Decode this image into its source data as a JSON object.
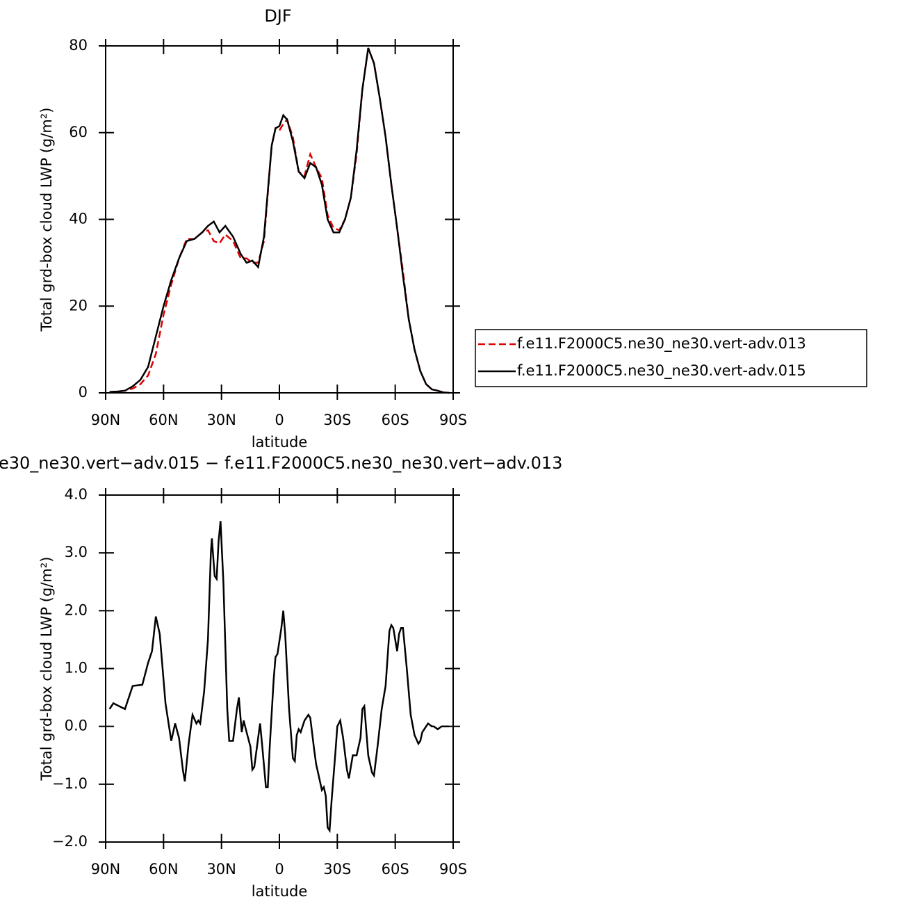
{
  "chart_data": [
    {
      "type": "line",
      "title": "DJF",
      "xlabel": "latitude",
      "ylabel": "Total grd-box cloud LWP (g/m²)",
      "x": [
        88,
        84,
        80,
        76,
        72,
        68,
        64,
        60,
        56,
        52,
        48,
        44,
        40,
        37,
        34,
        31,
        28,
        24,
        20,
        17,
        14,
        11,
        8,
        4,
        2,
        0,
        -2,
        -4,
        -7,
        -10,
        -13,
        -16,
        -19,
        -22,
        -25,
        -28,
        -31,
        -34,
        -37,
        -40,
        -43,
        -46,
        -49,
        -52,
        -55,
        -58,
        -61,
        -64,
        -67,
        -70,
        -73,
        -76,
        -79,
        -82,
        -85,
        -88
      ],
      "series": [
        {
          "name": "f.e11.F2000C5.ne30_ne30.vert-adv.013",
          "color": "#e00000",
          "line_style": "dashed",
          "values": [
            0.2,
            0.3,
            0.5,
            1,
            2,
            4,
            9,
            18,
            25,
            31,
            35.5,
            35.5,
            37,
            37.5,
            35,
            34.5,
            36.5,
            35,
            31,
            31,
            30,
            30,
            35,
            57,
            61,
            60.5,
            62,
            63,
            59,
            51,
            50,
            55,
            52,
            49.5,
            41,
            38,
            37.5,
            40,
            45,
            55,
            70,
            79.5,
            76,
            68,
            59,
            48,
            38,
            28,
            17,
            10,
            5,
            2,
            0.8,
            0.5,
            0.1,
            0
          ]
        },
        {
          "name": "f.e11.F2000C5.ne30_ne30.vert-adv.015",
          "color": "#000000",
          "line_style": "solid",
          "values": [
            0.2,
            0.3,
            0.5,
            1.5,
            3,
            6,
            13,
            20,
            26,
            31,
            35,
            35.5,
            37,
            38.5,
            39.5,
            37,
            38.5,
            36,
            32,
            30,
            30.5,
            29,
            36,
            57,
            61,
            61.5,
            64,
            63,
            58,
            51,
            49.5,
            53,
            52,
            48,
            40,
            37,
            37,
            40,
            45,
            56,
            70,
            79.5,
            76,
            68,
            59,
            48,
            38,
            27,
            17,
            10,
            5,
            2,
            0.8,
            0.5,
            0.1,
            0
          ]
        }
      ],
      "xlim": [
        90,
        -90
      ],
      "xticks": [
        {
          "value": 90,
          "label": "90N"
        },
        {
          "value": 60,
          "label": "60N"
        },
        {
          "value": 30,
          "label": "30N"
        },
        0,
        {
          "value": -30,
          "label": "30S"
        },
        {
          "value": -60,
          "label": "60S"
        },
        {
          "value": -90,
          "label": "90S"
        }
      ],
      "ylim": [
        0,
        80
      ],
      "yticks": [
        0,
        20,
        40,
        60,
        80
      ],
      "legend": "right"
    },
    {
      "type": "line",
      "title": "e30_ne30.vert−adv.015 − f.e11.F2000C5.ne30_ne30.vert−adv.013",
      "xlabel": "latitude",
      "ylabel": "Total grd-box cloud LWP (g/m²)",
      "x": [
        88,
        86,
        83,
        80,
        76,
        71,
        68,
        66,
        64,
        62,
        59,
        56,
        54,
        52,
        50,
        49,
        47,
        45,
        43,
        42,
        41,
        39,
        37,
        35.5,
        35,
        33.5,
        32.5,
        31.5,
        30.5,
        29,
        27,
        26,
        24,
        22,
        21,
        19.5,
        18.5,
        17,
        15,
        14,
        13,
        11,
        10,
        9,
        7,
        6,
        5,
        3,
        2,
        1,
        -1,
        -2,
        -3,
        -5,
        -7,
        -8,
        -9,
        -10,
        -11,
        -13,
        -15,
        -16,
        -18,
        -19,
        -20,
        -22,
        -23,
        -24,
        -25,
        -26,
        -27,
        -29,
        -30,
        -31.5,
        -33,
        -35,
        -36,
        -38,
        -40,
        -42,
        -43,
        -44,
        -46,
        -48,
        -49,
        -51,
        -53,
        -55,
        -57,
        -58,
        -59,
        -61,
        -62,
        -63,
        -64,
        -66,
        -68,
        -70,
        -72,
        -73,
        -74,
        -77,
        -79,
        -80,
        -82,
        -84,
        -88
      ],
      "color": "#000000",
      "values": [
        0.3,
        0.4,
        0.35,
        0.3,
        0.7,
        0.72,
        1.1,
        1.3,
        1.9,
        1.6,
        0.4,
        -0.25,
        0.05,
        -0.2,
        -0.75,
        -0.95,
        -0.3,
        0.2,
        0.05,
        0.1,
        0.05,
        0.6,
        1.5,
        3.0,
        3.25,
        2.6,
        2.55,
        3.2,
        3.55,
        2.5,
        0.3,
        -0.25,
        -0.25,
        0.3,
        0.5,
        -0.1,
        0.1,
        -0.1,
        -0.35,
        -0.75,
        -0.7,
        -0.2,
        0.05,
        -0.3,
        -1.05,
        -1.05,
        -0.35,
        0.8,
        1.2,
        1.25,
        1.7,
        2.0,
        1.6,
        0.3,
        -0.55,
        -0.6,
        -0.15,
        -0.05,
        -0.1,
        0.1,
        0.2,
        0.15,
        -0.4,
        -0.65,
        -0.8,
        -1.1,
        -1.05,
        -1.2,
        -1.75,
        -1.8,
        -1.3,
        -0.45,
        0.0,
        0.1,
        -0.2,
        -0.75,
        -0.9,
        -0.5,
        -0.5,
        -0.2,
        0.3,
        0.35,
        -0.5,
        -0.8,
        -0.85,
        -0.3,
        0.3,
        0.7,
        1.65,
        1.75,
        1.7,
        1.3,
        1.6,
        1.7,
        1.7,
        1.0,
        0.2,
        -0.15,
        -0.3,
        -0.25,
        -0.1,
        0.05,
        0.0,
        0.0,
        -0.05,
        0.0,
        0.0
      ],
      "xlim": [
        90,
        -90
      ],
      "xticks": [
        {
          "value": 90,
          "label": "90N"
        },
        {
          "value": 60,
          "label": "60N"
        },
        {
          "value": 30,
          "label": "30N"
        },
        0,
        {
          "value": -30,
          "label": "30S"
        },
        {
          "value": -60,
          "label": "60S"
        },
        {
          "value": -90,
          "label": "90S"
        }
      ],
      "ylim": [
        -2,
        4
      ],
      "yticks": [
        {
          "value": -2,
          "label": "−2.0"
        },
        {
          "value": -1,
          "label": "−1.0"
        },
        {
          "value": 0,
          "label": "0.0"
        },
        {
          "value": 1,
          "label": "1.0"
        },
        {
          "value": 2,
          "label": "2.0"
        },
        {
          "value": 3,
          "label": "3.0"
        },
        {
          "value": 4,
          "label": "4.0"
        }
      ]
    }
  ]
}
